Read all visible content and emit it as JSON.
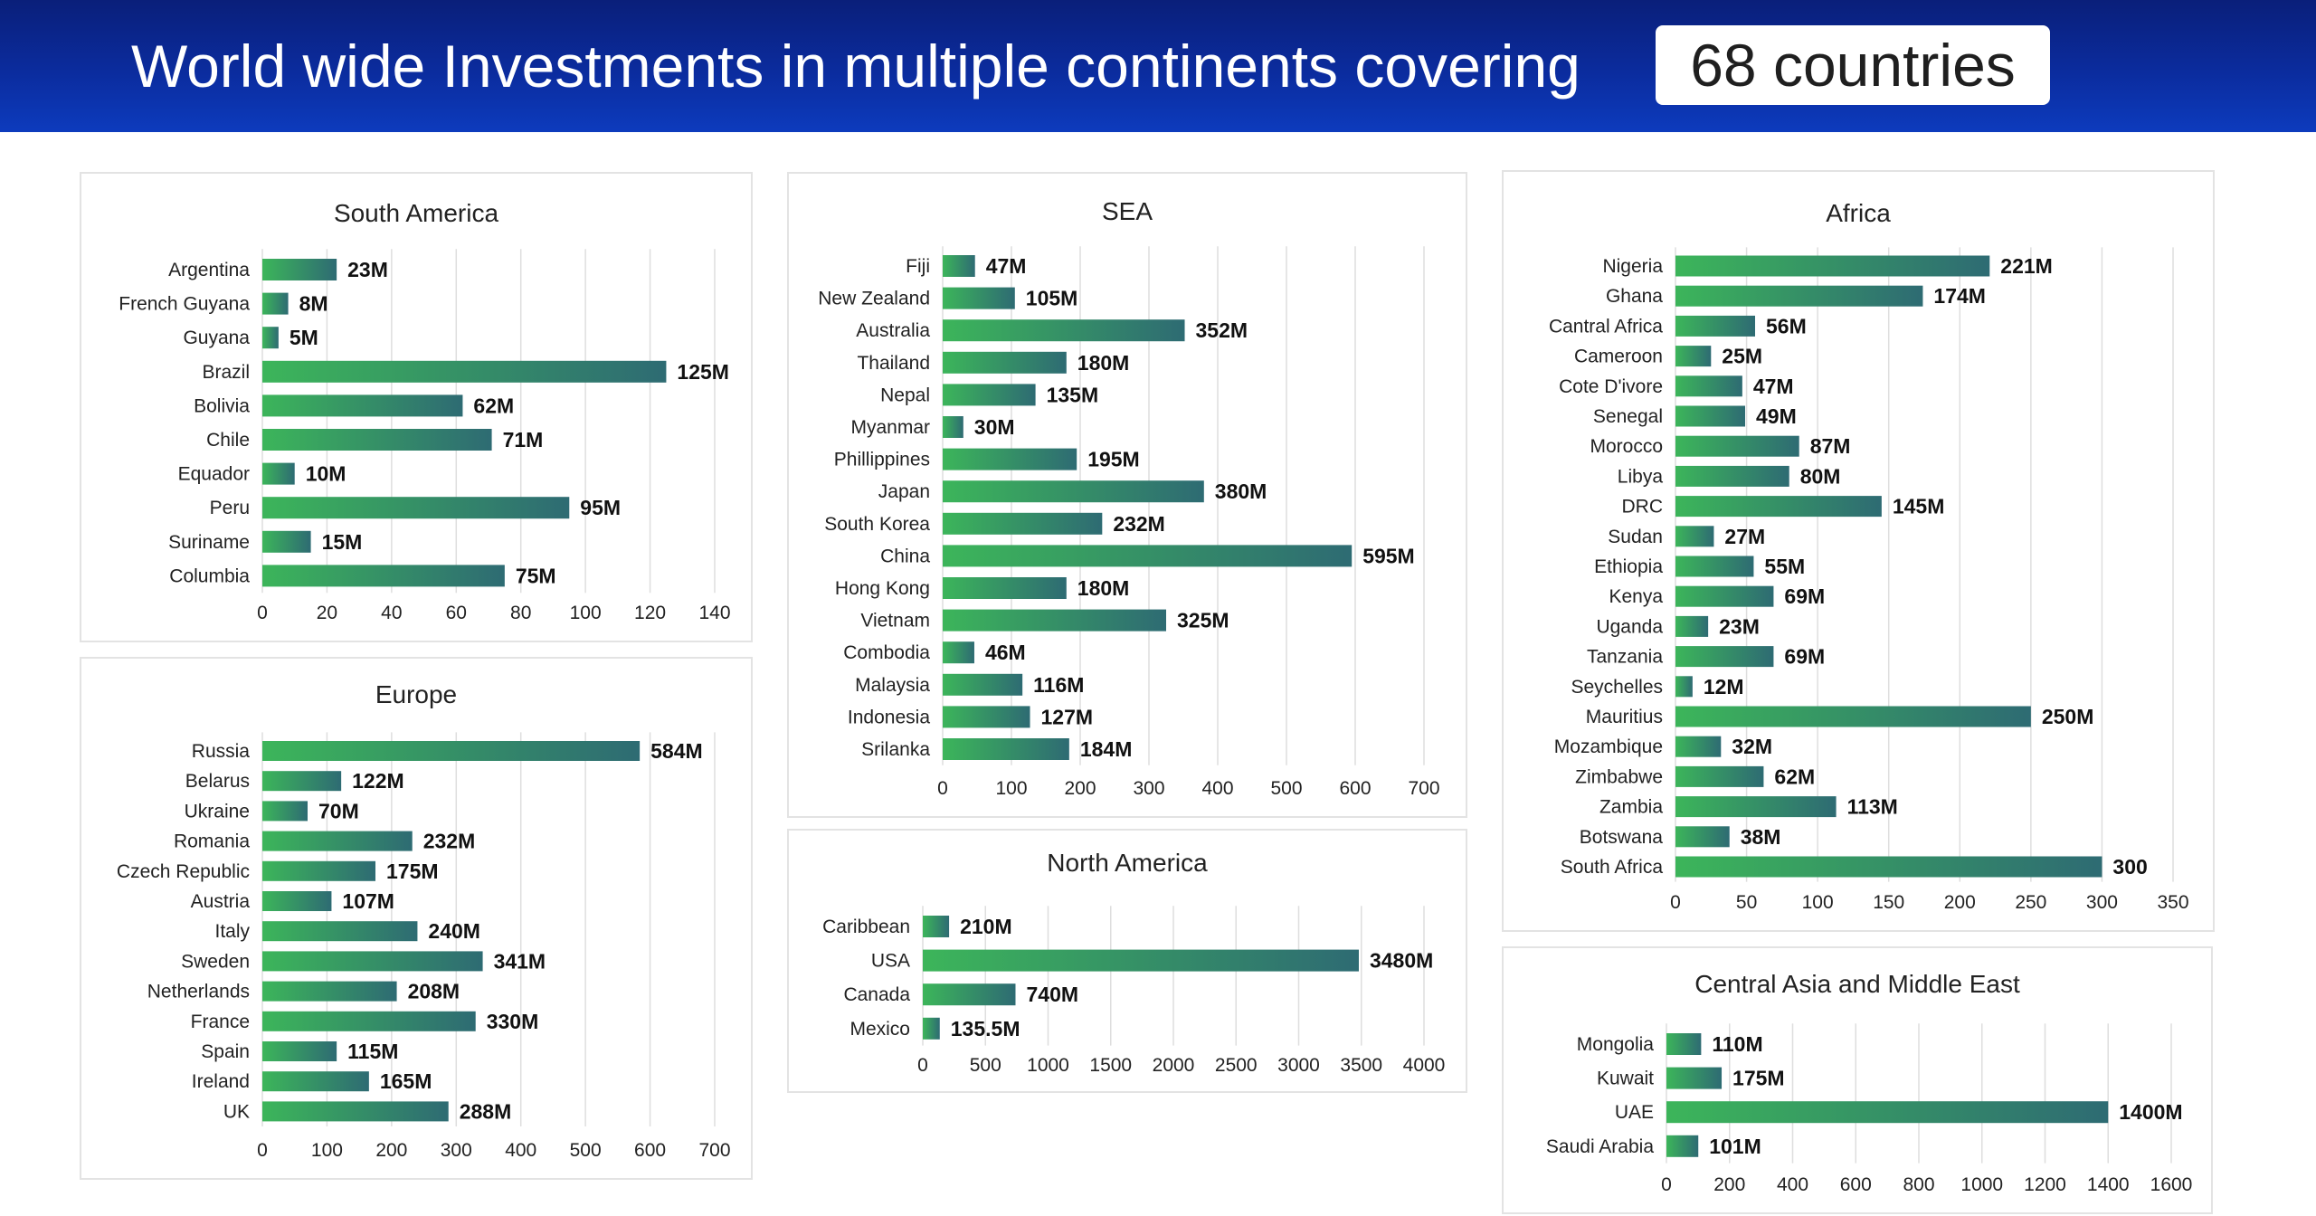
{
  "header": {
    "title": "World wide Investments in multiple continents covering",
    "badge": "68 countries"
  },
  "colors": {
    "bar_start": "#3cb55a",
    "bar_end": "#2e6b73",
    "header": "#0b2c9e"
  },
  "chart_data": [
    {
      "type": "bar",
      "title": "South America",
      "categories": [
        "Argentina",
        "French Guyana",
        "Guyana",
        "Brazil",
        "Bolivia",
        "Chile",
        "Equador",
        "Peru",
        "Suriname",
        "Columbia"
      ],
      "values": [
        23,
        8,
        5,
        125,
        62,
        71,
        10,
        95,
        15,
        75
      ],
      "data_labels": [
        "23M",
        "8M",
        "5M",
        "125M",
        "62M",
        "71M",
        "10M",
        "95M",
        "15M",
        "75M"
      ],
      "xlim": [
        0,
        140
      ],
      "xticks": [
        0,
        20,
        40,
        60,
        80,
        100,
        120,
        140
      ],
      "grid": true
    },
    {
      "type": "bar",
      "title": "Europe",
      "categories": [
        "Russia",
        "Belarus",
        "Ukraine",
        "Romania",
        "Czech Republic",
        "Austria",
        "Italy",
        "Sweden",
        "Netherlands",
        "France",
        "Spain",
        "Ireland",
        "UK"
      ],
      "values": [
        584,
        122,
        70,
        232,
        175,
        107,
        240,
        341,
        208,
        330,
        115,
        165,
        288
      ],
      "data_labels": [
        "584M",
        "122M",
        "70M",
        "232M",
        "175M",
        "107M",
        "240M",
        "341M",
        "208M",
        "330M",
        "115M",
        "165M",
        "288M"
      ],
      "xlim": [
        0,
        700
      ],
      "xticks": [
        0,
        100,
        200,
        300,
        400,
        500,
        600,
        700
      ],
      "grid": true
    },
    {
      "type": "bar",
      "title": "SEA",
      "categories": [
        "Fiji",
        "New Zealand",
        "Australia",
        "Thailand",
        "Nepal",
        "Myanmar",
        "Phillippines",
        "Japan",
        "South Korea",
        "China",
        "Hong Kong",
        "Vietnam",
        "Combodia",
        "Malaysia",
        "Indonesia",
        "Srilanka"
      ],
      "values": [
        47,
        105,
        352,
        180,
        135,
        30,
        195,
        380,
        232,
        595,
        180,
        325,
        46,
        116,
        127,
        184
      ],
      "data_labels": [
        "47M",
        "105M",
        "352M",
        "180M",
        "135M",
        "30M",
        "195M",
        "380M",
        "232M",
        "595M",
        "180M",
        "325M",
        "46M",
        "116M",
        "127M",
        "184M"
      ],
      "xlim": [
        0,
        700
      ],
      "xticks": [
        0,
        100,
        200,
        300,
        400,
        500,
        600,
        700
      ],
      "grid": true
    },
    {
      "type": "bar",
      "title": "North America",
      "categories": [
        "Caribbean",
        "USA",
        "Canada",
        "Mexico"
      ],
      "values": [
        210,
        3480,
        740,
        135.5
      ],
      "data_labels": [
        "210M",
        "3480M",
        "740M",
        "135.5M"
      ],
      "xlim": [
        0,
        4000
      ],
      "xticks": [
        0,
        500,
        1000,
        1500,
        2000,
        2500,
        3000,
        3500,
        4000
      ],
      "grid": true
    },
    {
      "type": "bar",
      "title": "Africa",
      "categories": [
        "Nigeria",
        "Ghana",
        "Cantral Africa",
        "Cameroon",
        "Cote D'ivore",
        "Senegal",
        "Morocco",
        "Libya",
        "DRC",
        "Sudan",
        "Ethiopia",
        "Kenya",
        "Uganda",
        "Tanzania",
        "Seychelles",
        "Mauritius",
        "Mozambique",
        "Zimbabwe",
        "Zambia",
        "Botswana",
        "South Africa"
      ],
      "values": [
        221,
        174,
        56,
        25,
        47,
        49,
        87,
        80,
        145,
        27,
        55,
        69,
        23,
        69,
        12,
        250,
        32,
        62,
        113,
        38,
        300
      ],
      "data_labels": [
        "221M",
        "174M",
        "56M",
        "25M",
        "47M",
        "49M",
        "87M",
        "80M",
        "145M",
        "27M",
        "55M",
        "69M",
        "23M",
        "69M",
        "12M",
        "250M",
        "32M",
        "62M",
        "113M",
        "38M",
        "300"
      ],
      "xlim": [
        0,
        350
      ],
      "xticks": [
        0,
        50,
        100,
        150,
        200,
        250,
        300,
        350
      ],
      "grid": true
    },
    {
      "type": "bar",
      "title": "Central Asia and Middle East",
      "categories": [
        "Mongolia",
        "Kuwait",
        "UAE",
        "Saudi Arabia"
      ],
      "values": [
        110,
        175,
        1400,
        101
      ],
      "data_labels": [
        "110M",
        "175M",
        "1400M",
        "101M"
      ],
      "xlim": [
        0,
        1600
      ],
      "xticks": [
        0,
        200,
        400,
        600,
        800,
        1000,
        1200,
        1400,
        1600
      ],
      "grid": true
    }
  ]
}
